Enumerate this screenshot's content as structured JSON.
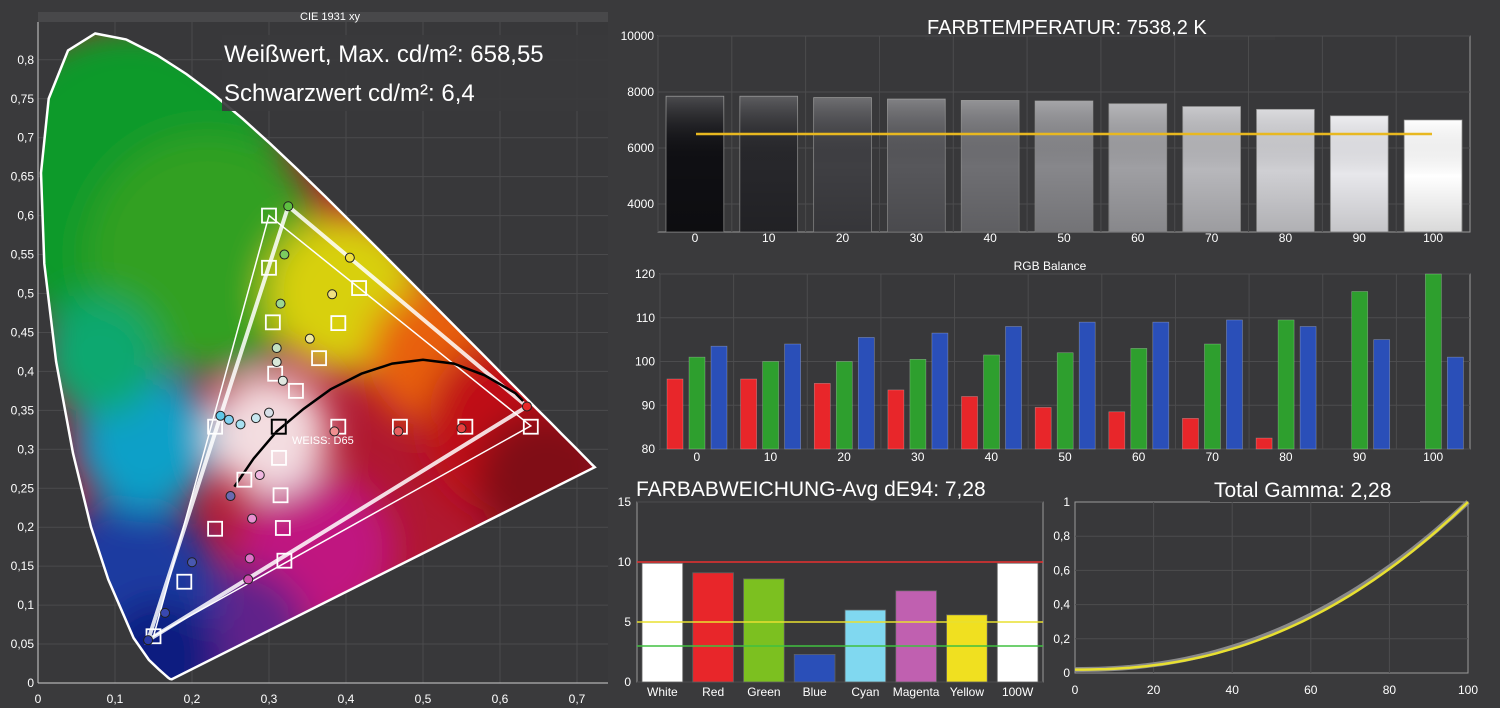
{
  "cie": {
    "title": "CIE 1931 xy",
    "white_label": "Weißwert, Max. cd/m²: 658,55",
    "black_label": "Schwarzwert cd/m²: 6,4",
    "d65_label": "WEISS: D65",
    "x_ticks": [
      "0",
      "0,1",
      "0,2",
      "0,3",
      "0,4",
      "0,5",
      "0,6",
      "0,7"
    ],
    "y_ticks": [
      "0",
      "0,05",
      "0,1",
      "0,15",
      "0,2",
      "0,25",
      "0,3",
      "0,35",
      "0,4",
      "0,45",
      "0,5",
      "0,55",
      "0,6",
      "0,65",
      "0,7",
      "0,75",
      "0,8"
    ]
  },
  "colors": {
    "background": "#3a3a3c",
    "panel": "#38383a",
    "red": "#e8262a",
    "green": "#2e9f2e",
    "blue": "#2a4fb8",
    "yellow": "#f0d020",
    "target_line": "#e8b820"
  },
  "chart_data": [
    {
      "id": "cie",
      "type": "scatter",
      "title": "CIE 1931 xy",
      "xlim": [
        0,
        0.74
      ],
      "ylim": [
        0,
        0.84
      ],
      "gamut_target": [
        [
          0.64,
          0.33
        ],
        [
          0.3,
          0.6
        ],
        [
          0.15,
          0.06
        ]
      ],
      "gamut_measured": [
        [
          0.635,
          0.355
        ],
        [
          0.325,
          0.612
        ],
        [
          0.143,
          0.055
        ]
      ],
      "targets": [
        [
          0.3,
          0.6
        ],
        [
          0.3,
          0.533
        ],
        [
          0.305,
          0.463
        ],
        [
          0.308,
          0.397
        ],
        [
          0.3127,
          0.329
        ],
        [
          0.313,
          0.289
        ],
        [
          0.315,
          0.241
        ],
        [
          0.318,
          0.199
        ],
        [
          0.32,
          0.157
        ],
        [
          0.417,
          0.507
        ],
        [
          0.39,
          0.462
        ],
        [
          0.365,
          0.417
        ],
        [
          0.335,
          0.375
        ],
        [
          0.39,
          0.329
        ],
        [
          0.47,
          0.329
        ],
        [
          0.555,
          0.329
        ],
        [
          0.64,
          0.329
        ],
        [
          0.23,
          0.329
        ],
        [
          0.268,
          0.261
        ],
        [
          0.23,
          0.198
        ],
        [
          0.19,
          0.13
        ],
        [
          0.15,
          0.06
        ]
      ],
      "measured_points": [
        {
          "x": 0.325,
          "y": 0.612,
          "c": "#5ec040"
        },
        {
          "x": 0.32,
          "y": 0.55,
          "c": "#7ccc60"
        },
        {
          "x": 0.315,
          "y": 0.487,
          "c": "#9cd690"
        },
        {
          "x": 0.31,
          "y": 0.43,
          "c": "#c2e0c0"
        },
        {
          "x": 0.31,
          "y": 0.412,
          "c": "#d8e8d8"
        },
        {
          "x": 0.318,
          "y": 0.388,
          "c": "#e0e8e0"
        },
        {
          "x": 0.405,
          "y": 0.546,
          "c": "#f0e040"
        },
        {
          "x": 0.382,
          "y": 0.499,
          "c": "#f0e080"
        },
        {
          "x": 0.353,
          "y": 0.442,
          "c": "#f0e8a0"
        },
        {
          "x": 0.3,
          "y": 0.347,
          "c": "#d8e0e8"
        },
        {
          "x": 0.283,
          "y": 0.34,
          "c": "#c8e8f0"
        },
        {
          "x": 0.263,
          "y": 0.332,
          "c": "#a8e0f0"
        },
        {
          "x": 0.248,
          "y": 0.338,
          "c": "#80d0f0"
        },
        {
          "x": 0.237,
          "y": 0.343,
          "c": "#60c8e8"
        },
        {
          "x": 0.385,
          "y": 0.323,
          "c": "#f09090"
        },
        {
          "x": 0.468,
          "y": 0.323,
          "c": "#e86060"
        },
        {
          "x": 0.55,
          "y": 0.327,
          "c": "#e84040"
        },
        {
          "x": 0.635,
          "y": 0.355,
          "c": "#e82828"
        },
        {
          "x": 0.288,
          "y": 0.267,
          "c": "#f0b8e0"
        },
        {
          "x": 0.278,
          "y": 0.211,
          "c": "#e890d0"
        },
        {
          "x": 0.275,
          "y": 0.16,
          "c": "#e070c8"
        },
        {
          "x": 0.273,
          "y": 0.133,
          "c": "#d050b0"
        },
        {
          "x": 0.25,
          "y": 0.24,
          "c": "#6a6ab0"
        },
        {
          "x": 0.2,
          "y": 0.155,
          "c": "#4858b0"
        },
        {
          "x": 0.165,
          "y": 0.09,
          "c": "#3848b0"
        },
        {
          "x": 0.143,
          "y": 0.055,
          "c": "#2a3aa8"
        }
      ],
      "white_point": {
        "x": 0.3127,
        "y": 0.329
      }
    },
    {
      "id": "cct",
      "type": "bar",
      "title": "FARBTEMPERATUR: 7538,2 K",
      "categories": [
        "0",
        "10",
        "20",
        "30",
        "40",
        "50",
        "60",
        "70",
        "80",
        "90",
        "100"
      ],
      "values": [
        7850,
        7850,
        7800,
        7750,
        7700,
        7680,
        7580,
        7480,
        7380,
        7150,
        7000
      ],
      "target": 6500,
      "yticks": [
        "4000",
        "6000",
        "8000",
        "10000"
      ],
      "ylim": [
        3000,
        10000
      ]
    },
    {
      "id": "rgb",
      "type": "bar",
      "title": "RGB Balance",
      "categories": [
        "0",
        "10",
        "20",
        "30",
        "40",
        "50",
        "60",
        "70",
        "80",
        "90",
        "100"
      ],
      "series": [
        {
          "values": [
            96,
            96,
            95,
            93.5,
            92,
            89.5,
            88.5,
            87,
            82.5,
            null,
            null
          ]
        },
        {
          "values": [
            101,
            100,
            100,
            100.5,
            101.5,
            102,
            103,
            104,
            109.5,
            116,
            121
          ]
        },
        {
          "values": [
            103.5,
            104,
            105.5,
            106.5,
            108,
            109,
            109,
            109.5,
            108,
            105,
            101
          ]
        }
      ],
      "yticks": [
        "80",
        "90",
        "100",
        "110",
        "120"
      ],
      "ylim": [
        80,
        120
      ]
    },
    {
      "id": "de",
      "type": "bar",
      "title": "FARBABWEICHUNG-Avg dE94: 7,28",
      "categories": [
        "White",
        "Red",
        "Green",
        "Blue",
        "Cyan",
        "Magenta",
        "Yellow",
        "100W"
      ],
      "values": [
        9.9,
        9.1,
        8.6,
        2.3,
        6.0,
        7.6,
        5.6,
        9.9
      ],
      "limits": [
        10,
        5,
        3
      ],
      "yticks": [
        "0",
        "5",
        "10",
        "15"
      ],
      "ylim": [
        0,
        15
      ]
    },
    {
      "id": "gamma",
      "type": "line",
      "title": "Total Gamma: 2,28",
      "gamma": 2.28,
      "reference_gamma": 2.2,
      "xticks": [
        "0",
        "20",
        "40",
        "60",
        "80",
        "100"
      ],
      "yticks": [
        "0",
        "0,2",
        "0,4",
        "0,6",
        "0,8",
        "1"
      ],
      "xlim": [
        0,
        100
      ],
      "ylim": [
        0,
        1
      ]
    }
  ]
}
